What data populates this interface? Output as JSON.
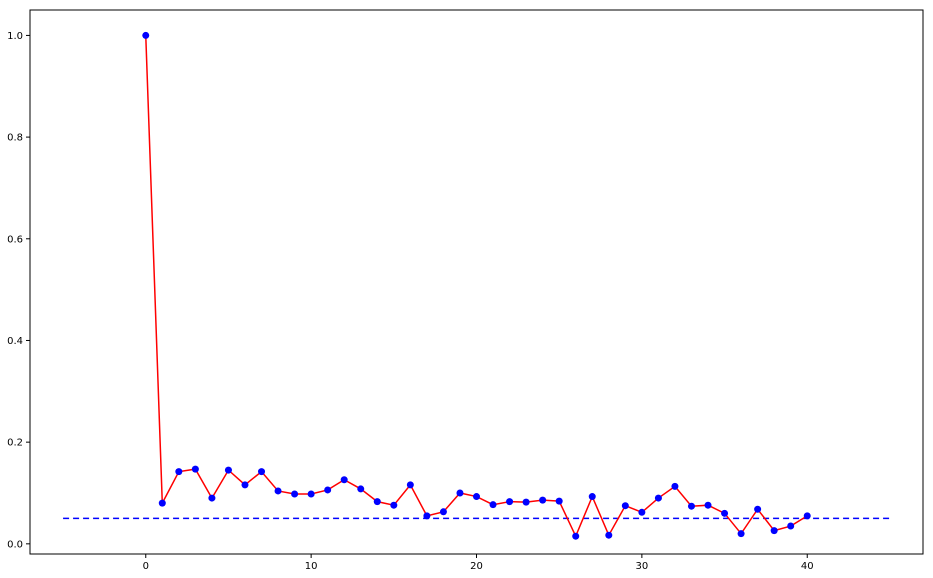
{
  "chart_data": {
    "type": "line",
    "title": "",
    "xlabel": "",
    "ylabel": "",
    "xlim": [
      -7,
      47
    ],
    "ylim": [
      -0.02,
      1.05
    ],
    "x_ticks": [
      0,
      10,
      20,
      30,
      40
    ],
    "y_ticks": [
      0.0,
      0.2,
      0.4,
      0.6,
      0.8,
      1.0
    ],
    "x_tick_labels": [
      "0",
      "10",
      "20",
      "30",
      "40"
    ],
    "y_tick_labels": [
      "0.0",
      "0.2",
      "0.4",
      "0.6",
      "0.8",
      "1.0"
    ],
    "grid": false,
    "series": [
      {
        "line_color": "#ff0000",
        "marker_color": "#0000ff",
        "x": [
          0,
          1,
          2,
          3,
          4,
          5,
          6,
          7,
          8,
          9,
          10,
          11,
          12,
          13,
          14,
          15,
          16,
          17,
          18,
          19,
          20,
          21,
          22,
          23,
          24,
          25,
          26,
          27,
          28,
          29,
          30,
          31,
          32,
          33,
          34,
          35,
          36,
          37,
          38,
          39,
          40
        ],
        "values": [
          1.0,
          0.08,
          0.142,
          0.147,
          0.09,
          0.145,
          0.116,
          0.142,
          0.104,
          0.098,
          0.098,
          0.106,
          0.126,
          0.108,
          0.083,
          0.076,
          0.116,
          0.055,
          0.063,
          0.1,
          0.093,
          0.077,
          0.083,
          0.082,
          0.086,
          0.084,
          0.015,
          0.093,
          0.017,
          0.075,
          0.062,
          0.09,
          0.113,
          0.074,
          0.076,
          0.06,
          0.02,
          0.068,
          0.026,
          0.035,
          0.055
        ]
      }
    ],
    "reference_line": {
      "y": 0.05,
      "x_range": [
        -5,
        45
      ],
      "color": "#0000ff",
      "style": "dashed"
    }
  }
}
